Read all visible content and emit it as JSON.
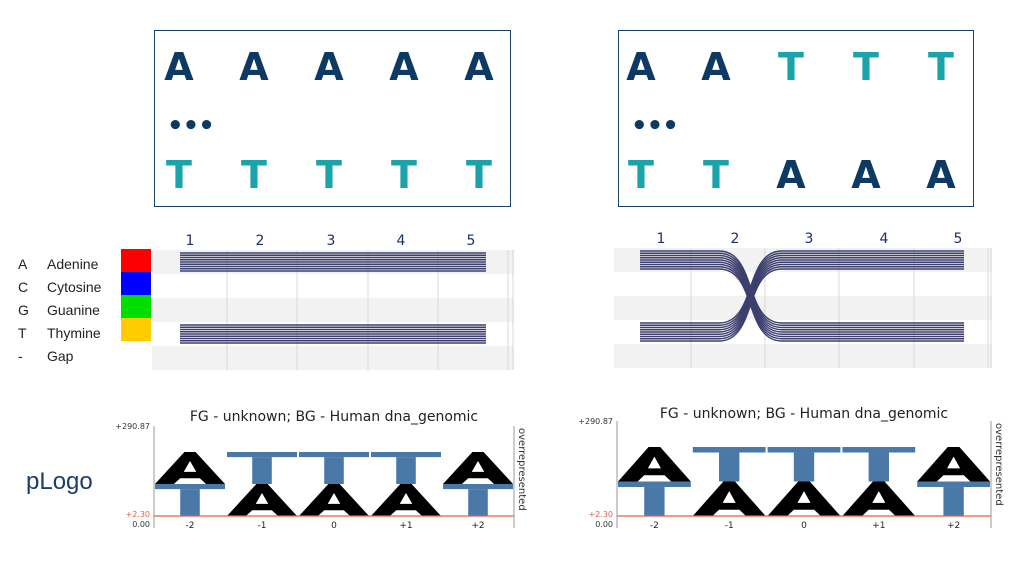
{
  "colors": {
    "dark": "#0d3a63",
    "teal": "#1aa3a8",
    "lines": "#3c3f6e",
    "pos_bar": "#4a79a8",
    "neg_bar": "#000000",
    "threshold": "#e06040"
  },
  "panels": [
    {
      "sequences": [
        {
          "letters": [
            "A",
            "A",
            "A",
            "A",
            "A"
          ],
          "colors": [
            "dark",
            "dark",
            "dark",
            "dark",
            "dark"
          ]
        },
        {
          "letters": [
            "T",
            "T",
            "T",
            "T",
            "T"
          ],
          "colors": [
            "teal",
            "teal",
            "teal",
            "teal",
            "teal"
          ]
        }
      ],
      "ellipsis": "•••",
      "alignment": {
        "positions": [
          "1",
          "2",
          "3",
          "4",
          "5"
        ],
        "crossover": false
      },
      "plogo": {
        "title": "FG - unknown;  BG - Human dna_genomic",
        "y_labels": {
          "top": "+290.87",
          "threshold": "+2.30",
          "bottom": "0.00"
        },
        "side_label": "overrepresented",
        "positions": [
          "-2",
          "-1",
          "0",
          "+1",
          "+2"
        ],
        "stacks": [
          [
            "A",
            "T"
          ],
          [
            "T",
            "A"
          ],
          [
            "T",
            "A"
          ],
          [
            "T",
            "A"
          ],
          [
            "A",
            "T"
          ]
        ]
      }
    },
    {
      "sequences": [
        {
          "letters": [
            "A",
            "A",
            "T",
            "T",
            "T"
          ],
          "colors": [
            "dark",
            "dark",
            "teal",
            "teal",
            "teal"
          ]
        },
        {
          "letters": [
            "T",
            "T",
            "A",
            "A",
            "A"
          ],
          "colors": [
            "teal",
            "teal",
            "dark",
            "dark",
            "dark"
          ]
        }
      ],
      "ellipsis": "•••",
      "alignment": {
        "positions": [
          "1",
          "2",
          "3",
          "4",
          "5"
        ],
        "crossover": true
      },
      "plogo": {
        "title": "FG - unknown;  BG - Human dna_genomic",
        "y_labels": {
          "top": "+290.87",
          "threshold": "+2.30",
          "bottom": "0.00"
        },
        "side_label": "overrepresented",
        "positions": [
          "-2",
          "-1",
          "0",
          "+1",
          "+2"
        ],
        "stacks": [
          [
            "A",
            "T"
          ],
          [
            "T",
            "A"
          ],
          [
            "T",
            "A"
          ],
          [
            "T",
            "A"
          ],
          [
            "A",
            "T"
          ]
        ]
      }
    }
  ],
  "legend": [
    {
      "code": "A",
      "name": "Adenine",
      "color": "#ff0000"
    },
    {
      "code": "C",
      "name": "Cytosine",
      "color": "#0000ff"
    },
    {
      "code": "G",
      "name": "Guanine",
      "color": "#00dd00"
    },
    {
      "code": "T",
      "name": "Thymine",
      "color": "#ffcc00"
    },
    {
      "code": "-",
      "name": "Gap"
    }
  ],
  "plogo_label": "pLogo"
}
